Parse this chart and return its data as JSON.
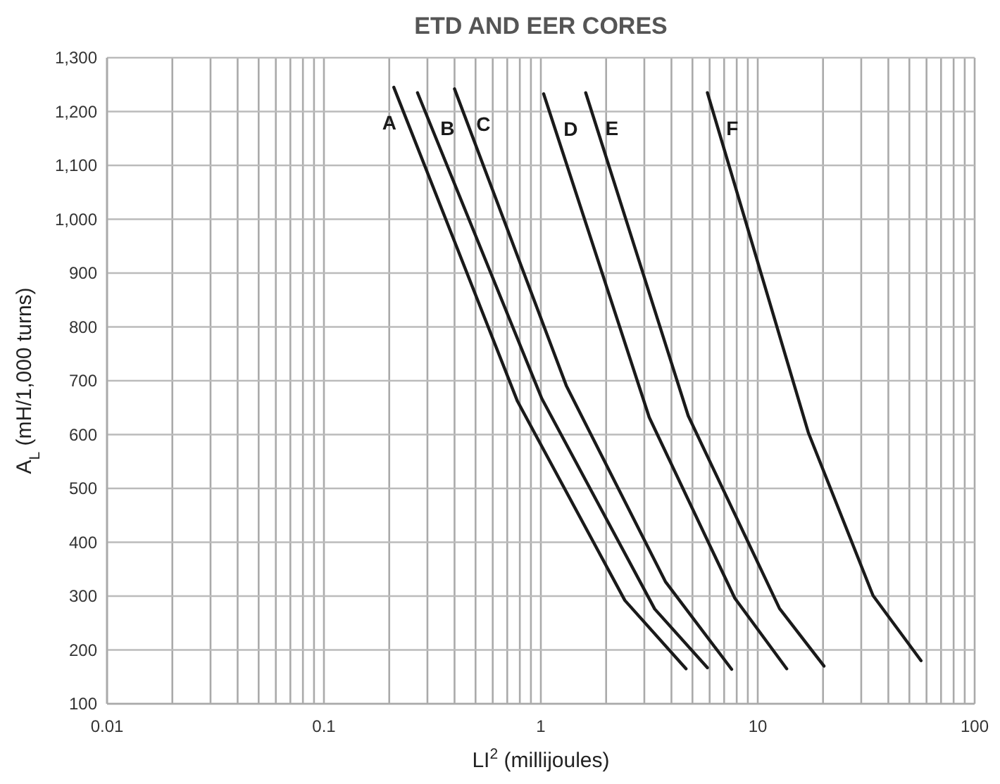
{
  "chart_data": {
    "type": "line",
    "title": "ETD AND EER CORES",
    "xlabel": "LI$^{2}$ (millijoules)",
    "ylabel": "A$_{L}$ (mH/1,000 turns)",
    "log": "x",
    "grid": true,
    "legend": false,
    "marker": "none",
    "line_style": "solid",
    "xlim": [
      0.01,
      100
    ],
    "xticks": [
      0.01,
      {
        "value": 0.02,
        "label": null
      },
      {
        "value": 0.03,
        "label": null
      },
      {
        "value": 0.04,
        "label": null
      },
      {
        "value": 0.05,
        "label": null
      },
      {
        "value": 0.06,
        "label": null
      },
      {
        "value": 0.07,
        "label": null
      },
      {
        "value": 0.08,
        "label": null
      },
      {
        "value": 0.09,
        "label": null
      },
      0.1,
      {
        "value": 0.2,
        "label": null
      },
      {
        "value": 0.3,
        "label": null
      },
      {
        "value": 0.4,
        "label": null
      },
      {
        "value": 0.5,
        "label": null
      },
      {
        "value": 0.6,
        "label": null
      },
      {
        "value": 0.7,
        "label": null
      },
      {
        "value": 0.8,
        "label": null
      },
      {
        "value": 0.9,
        "label": null
      },
      1,
      {
        "value": 2,
        "label": null
      },
      {
        "value": 3,
        "label": null
      },
      {
        "value": 4,
        "label": null
      },
      {
        "value": 5,
        "label": null
      },
      {
        "value": 6,
        "label": null
      },
      {
        "value": 7,
        "label": null
      },
      {
        "value": 8,
        "label": null
      },
      {
        "value": 9,
        "label": null
      },
      10,
      {
        "value": 20,
        "label": null
      },
      {
        "value": 30,
        "label": null
      },
      {
        "value": 40,
        "label": null
      },
      {
        "value": 50,
        "label": null
      },
      {
        "value": 60,
        "label": null
      },
      {
        "value": 70,
        "label": null
      },
      {
        "value": 80,
        "label": null
      },
      {
        "value": 90,
        "label": null
      },
      100
    ],
    "ylim": [
      100,
      1300
    ],
    "yticks": [
      100,
      200,
      300,
      400,
      500,
      600,
      700,
      800,
      900,
      {
        "value": 1000,
        "label": "1,000"
      },
      {
        "value": 1100,
        "label": "1,100"
      },
      {
        "value": 1200,
        "label": "1,200"
      },
      {
        "value": 1300,
        "label": "1,300"
      }
    ],
    "series": [
      {
        "name": "A",
        "color": "#1a1a1a",
        "x": [
          0.21,
          0.78,
          2.44,
          4.67
        ],
        "values": [
          1245,
          662,
          292,
          165
        ]
      },
      {
        "name": "B",
        "color": "#1a1a1a",
        "x": [
          0.27,
          1.01,
          3.35,
          5.86
        ],
        "values": [
          1235,
          667,
          276,
          167
        ]
      },
      {
        "name": "C",
        "color": "#1a1a1a",
        "x": [
          0.4,
          1.31,
          3.75,
          7.58
        ],
        "values": [
          1242,
          691,
          327,
          164
        ]
      },
      {
        "name": "D",
        "color": "#1a1a1a",
        "x": [
          1.03,
          3.16,
          7.84,
          13.6
        ],
        "values": [
          1233,
          632,
          296,
          165
        ]
      },
      {
        "name": "E",
        "color": "#1a1a1a",
        "x": [
          1.61,
          4.78,
          12.6,
          20.2
        ],
        "values": [
          1235,
          635,
          277,
          170
        ]
      },
      {
        "name": "F",
        "color": "#1a1a1a",
        "x": [
          5.86,
          17.1,
          34,
          56.6
        ],
        "values": [
          1235,
          604,
          301,
          180
        ]
      }
    ]
  }
}
